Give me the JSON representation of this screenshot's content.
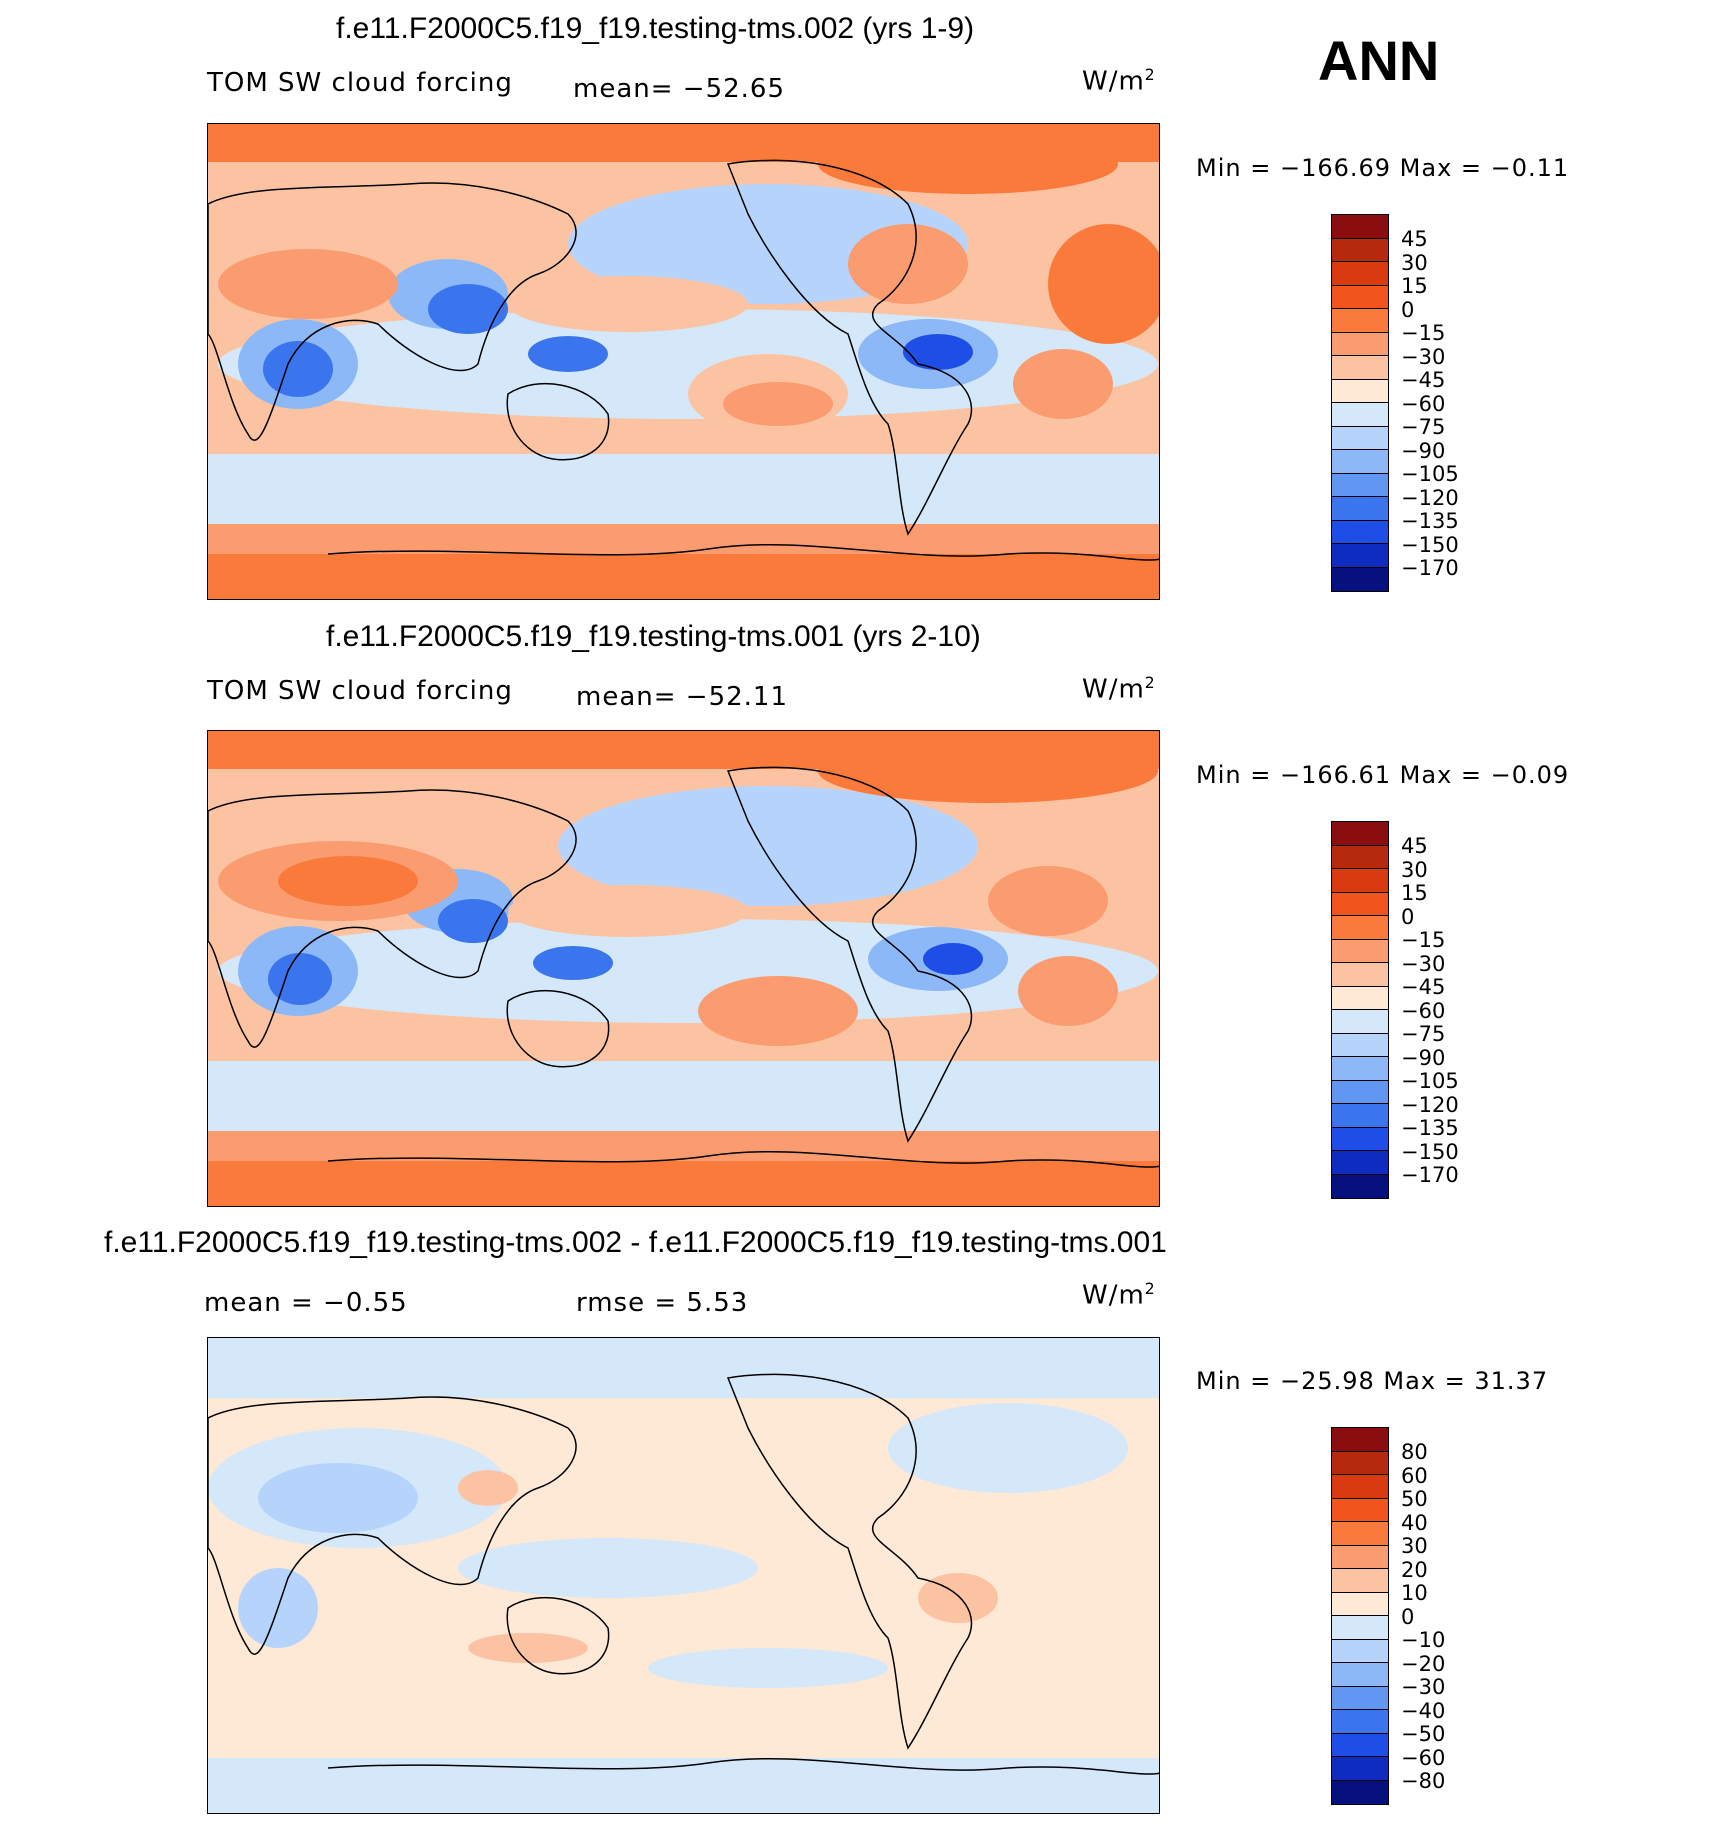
{
  "season": "ANN",
  "units_main": "W/m",
  "units_sup": "2",
  "chart_data": [
    {
      "type": "heatmap",
      "title": "f.e11.F2000C5.f19_f19.testing-tms.002 (yrs 1-9)",
      "variable": "TOM SW cloud forcing",
      "mean_text": "mean= −52.65",
      "minmax_text": "Min = −166.69 Max =  −0.11",
      "min": -166.69,
      "max": -0.11,
      "levels": [
        "45",
        "30",
        "15",
        "0",
        "−15",
        "−30",
        "−45",
        "−60",
        "−75",
        "−90",
        "−105",
        "−120",
        "−135",
        "−150",
        "−170"
      ],
      "colors": [
        "#8b0d0d",
        "#b52a0c",
        "#d93a0f",
        "#f2541d",
        "#fa7a3c",
        "#fa9c70",
        "#fcc3a2",
        "#fee8d6",
        "#d5e8fa",
        "#b6d4fb",
        "#8db8f7",
        "#5f97f2",
        "#3a75ed",
        "#1e4ee6",
        "#0f2cc0",
        "#07107f"
      ]
    },
    {
      "type": "heatmap",
      "title": "f.e11.F2000C5.f19_f19.testing-tms.001 (yrs 2-10)",
      "variable": "TOM SW cloud forcing",
      "mean_text": "mean= −52.11",
      "minmax_text": "Min = −166.61 Max =  −0.09",
      "min": -166.61,
      "max": -0.09,
      "levels": [
        "45",
        "30",
        "15",
        "0",
        "−15",
        "−30",
        "−45",
        "−60",
        "−75",
        "−90",
        "−105",
        "−120",
        "−135",
        "−150",
        "−170"
      ],
      "colors": [
        "#8b0d0d",
        "#b52a0c",
        "#d93a0f",
        "#f2541d",
        "#fa7a3c",
        "#fa9c70",
        "#fcc3a2",
        "#fee8d6",
        "#d5e8fa",
        "#b6d4fb",
        "#8db8f7",
        "#5f97f2",
        "#3a75ed",
        "#1e4ee6",
        "#0f2cc0",
        "#07107f"
      ]
    },
    {
      "type": "heatmap",
      "title": "f.e11.F2000C5.f19_f19.testing-tms.002 - f.e11.F2000C5.f19_f19.testing-tms.001",
      "mean_text": "mean =   −0.55",
      "rmse_text": "rmse =    5.53",
      "minmax_text": "Min = −25.98 Max =   31.37",
      "min": -25.98,
      "max": 31.37,
      "levels": [
        "80",
        "60",
        "50",
        "40",
        "30",
        "20",
        "10",
        "0",
        "−10",
        "−20",
        "−30",
        "−40",
        "−50",
        "−60",
        "−80"
      ],
      "colors": [
        "#8b0d0d",
        "#b52a0c",
        "#d93a0f",
        "#f2541d",
        "#fa7a3c",
        "#fa9c70",
        "#fcc3a2",
        "#fee8d6",
        "#d5e8fa",
        "#b6d4fb",
        "#8db8f7",
        "#5f97f2",
        "#3a75ed",
        "#1e4ee6",
        "#0f2cc0",
        "#07107f"
      ]
    }
  ]
}
